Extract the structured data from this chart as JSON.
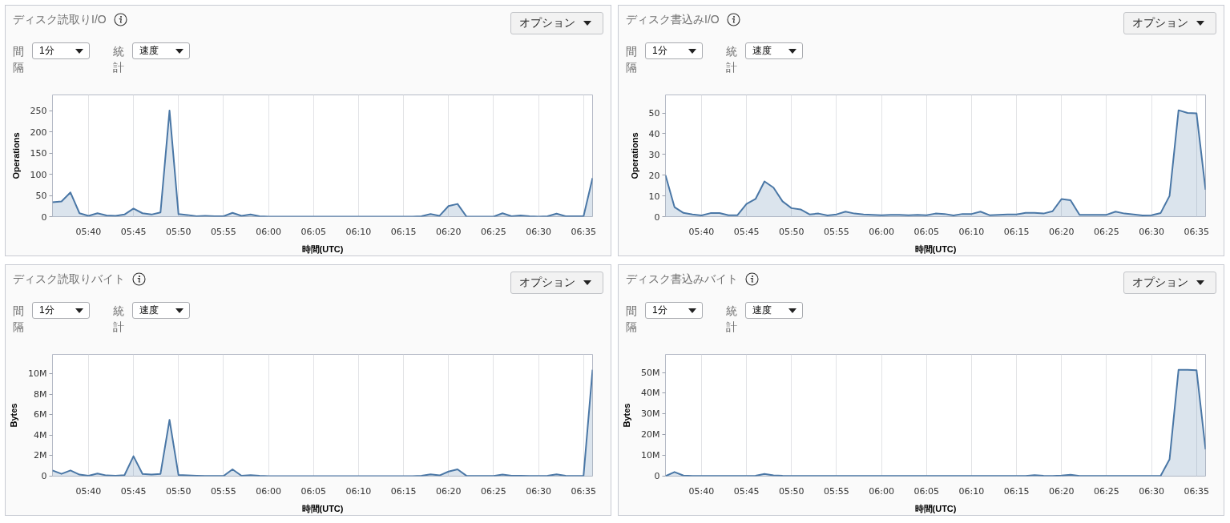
{
  "chart_data": [
    {
      "type": "area",
      "title": "ディスク読取りI/O",
      "annotations": [
        "オプション",
        "間隔",
        "1分",
        "統計",
        "速度"
      ],
      "xlabel": "時間(UTC)",
      "ylabel": "Operations",
      "color": "#4a77a6",
      "grid": "x",
      "x": [
        5.6,
        5.6167,
        5.6333,
        5.65,
        5.6667,
        5.6833,
        5.7,
        5.7167,
        5.7333,
        5.75,
        5.7667,
        5.7833,
        5.8,
        5.8167,
        5.8333,
        5.85,
        5.8667,
        5.8833,
        5.9,
        5.9167,
        5.9333,
        5.95,
        5.9667,
        5.9833,
        6.0,
        6.0167,
        6.0333,
        6.05,
        6.0667,
        6.0833,
        6.1,
        6.1167,
        6.1333,
        6.15,
        6.1667,
        6.1833,
        6.2,
        6.2167,
        6.2333,
        6.25,
        6.2667,
        6.2833,
        6.3,
        6.3167,
        6.3333,
        6.35,
        6.3667,
        6.3833,
        6.4,
        6.4167,
        6.4333,
        6.45,
        6.4667,
        6.4833,
        6.5,
        6.5167,
        6.5333,
        6.55,
        6.5667,
        6.5833,
        6.6
      ],
      "values": [
        34,
        36,
        57,
        8,
        2,
        8,
        3,
        2,
        5,
        19,
        8,
        5,
        10,
        250,
        6,
        4,
        1,
        2,
        1,
        1,
        9,
        2,
        5,
        1,
        0,
        0,
        0,
        0,
        0,
        0,
        0,
        0,
        0,
        0,
        0,
        0,
        0,
        0,
        0,
        0,
        0,
        1,
        6,
        2,
        25,
        30,
        0,
        0,
        0,
        0,
        8,
        1,
        3,
        1,
        0,
        1,
        7,
        1,
        1,
        1,
        91
      ],
      "xlim": [
        5.6,
        6.6
      ],
      "ylim": [
        0,
        287
      ],
      "xticks": [
        {
          "value": 5.6667,
          "label": "05:40"
        },
        {
          "value": 5.75,
          "label": "05:45"
        },
        {
          "value": 5.8333,
          "label": "05:50"
        },
        {
          "value": 5.9167,
          "label": "05:55"
        },
        {
          "value": 6.0,
          "label": "06:00"
        },
        {
          "value": 6.0833,
          "label": "06:05"
        },
        {
          "value": 6.1667,
          "label": "06:10"
        },
        {
          "value": 6.25,
          "label": "06:15"
        },
        {
          "value": 6.3333,
          "label": "06:20"
        },
        {
          "value": 6.4167,
          "label": "06:25"
        },
        {
          "value": 6.5,
          "label": "06:30"
        },
        {
          "value": 6.5833,
          "label": "06:35"
        }
      ],
      "yticks": [
        0,
        50,
        100,
        150,
        200,
        250
      ]
    },
    {
      "type": "area",
      "title": "ディスク書込みI/O",
      "annotations": [
        "オプション",
        "間隔",
        "1分",
        "統計",
        "速度"
      ],
      "xlabel": "時間(UTC)",
      "ylabel": "Operations",
      "color": "#4a77a6",
      "grid": "x",
      "x": [
        5.6,
        5.6167,
        5.6333,
        5.65,
        5.6667,
        5.6833,
        5.7,
        5.7167,
        5.7333,
        5.75,
        5.7667,
        5.7833,
        5.8,
        5.8167,
        5.8333,
        5.85,
        5.8667,
        5.8833,
        5.9,
        5.9167,
        5.9333,
        5.95,
        5.9667,
        5.9833,
        6.0,
        6.0167,
        6.0333,
        6.05,
        6.0667,
        6.0833,
        6.1,
        6.1167,
        6.1333,
        6.15,
        6.1667,
        6.1833,
        6.2,
        6.2167,
        6.2333,
        6.25,
        6.2667,
        6.2833,
        6.3,
        6.3167,
        6.3333,
        6.35,
        6.3667,
        6.3833,
        6.4,
        6.4167,
        6.4333,
        6.45,
        6.4667,
        6.4833,
        6.5,
        6.5167,
        6.5333,
        6.55,
        6.5667,
        6.5833,
        6.6
      ],
      "values": [
        20,
        4.6,
        1.8,
        1.1,
        0.6,
        1.7,
        1.7,
        0.7,
        0.7,
        6.1,
        8.5,
        17,
        14,
        7.4,
        4.1,
        3.5,
        1.1,
        1.5,
        0.6,
        1.1,
        2.4,
        1.5,
        1.1,
        0.9,
        0.7,
        0.9,
        0.9,
        0.7,
        0.9,
        0.7,
        1.5,
        1.3,
        0.6,
        1.3,
        1.3,
        2.4,
        0.7,
        0.9,
        1.1,
        1.1,
        1.8,
        1.8,
        1.5,
        2.6,
        8.5,
        7.9,
        0.9,
        0.9,
        0.9,
        0.9,
        2.4,
        1.5,
        1.1,
        0.6,
        0.7,
        1.7,
        10,
        51.3,
        50,
        49.8,
        13
      ],
      "xlim": [
        5.6,
        6.6
      ],
      "ylim": [
        0,
        58.7
      ],
      "xticks": [
        {
          "value": 5.6667,
          "label": "05:40"
        },
        {
          "value": 5.75,
          "label": "05:45"
        },
        {
          "value": 5.8333,
          "label": "05:50"
        },
        {
          "value": 5.9167,
          "label": "05:55"
        },
        {
          "value": 6.0,
          "label": "06:00"
        },
        {
          "value": 6.0833,
          "label": "06:05"
        },
        {
          "value": 6.1667,
          "label": "06:10"
        },
        {
          "value": 6.25,
          "label": "06:15"
        },
        {
          "value": 6.3333,
          "label": "06:20"
        },
        {
          "value": 6.4167,
          "label": "06:25"
        },
        {
          "value": 6.5,
          "label": "06:30"
        },
        {
          "value": 6.5833,
          "label": "06:35"
        }
      ],
      "yticks": [
        0,
        10,
        20,
        30,
        40,
        50
      ]
    },
    {
      "type": "area",
      "title": "ディスク読取りバイト",
      "annotations": [
        "オプション",
        "間隔",
        "1分",
        "統計",
        "速度"
      ],
      "xlabel": "時間(UTC)",
      "ylabel": "Bytes",
      "color": "#4a77a6",
      "grid": "x",
      "x": [
        5.6,
        5.6167,
        5.6333,
        5.65,
        5.6667,
        5.6833,
        5.7,
        5.7167,
        5.7333,
        5.75,
        5.7667,
        5.7833,
        5.8,
        5.8167,
        5.8333,
        5.85,
        5.8667,
        5.8833,
        5.9,
        5.9167,
        5.9333,
        5.95,
        5.9667,
        5.9833,
        6.0,
        6.0167,
        6.0333,
        6.05,
        6.0667,
        6.0833,
        6.1,
        6.1167,
        6.1333,
        6.15,
        6.1667,
        6.1833,
        6.2,
        6.2167,
        6.2333,
        6.25,
        6.2667,
        6.2833,
        6.3,
        6.3167,
        6.3333,
        6.35,
        6.3667,
        6.3833,
        6.4,
        6.4167,
        6.4333,
        6.45,
        6.4667,
        6.4833,
        6.5,
        6.5167,
        6.5333,
        6.55,
        6.5667,
        6.5833,
        6.6
      ],
      "values": [
        560000,
        220000,
        560000,
        150000,
        40000,
        260000,
        70000,
        40000,
        100000,
        1950000,
        220000,
        150000,
        220000,
        5500000,
        110000,
        70000,
        40000,
        20000,
        20000,
        20000,
        670000,
        40000,
        100000,
        30000,
        0,
        0,
        0,
        0,
        0,
        0,
        0,
        0,
        0,
        0,
        0,
        0,
        0,
        0,
        0,
        0,
        0,
        40000,
        180000,
        70000,
        450000,
        670000,
        30000,
        20000,
        20000,
        20000,
        150000,
        40000,
        40000,
        20000,
        20000,
        40000,
        180000,
        40000,
        20000,
        40000,
        10400000
      ],
      "xlim": [
        5.6,
        6.6
      ],
      "ylim": [
        0,
        11900000
      ],
      "xticks": [
        {
          "value": 5.6667,
          "label": "05:40"
        },
        {
          "value": 5.75,
          "label": "05:45"
        },
        {
          "value": 5.8333,
          "label": "05:50"
        },
        {
          "value": 5.9167,
          "label": "05:55"
        },
        {
          "value": 6.0,
          "label": "06:00"
        },
        {
          "value": 6.0833,
          "label": "06:05"
        },
        {
          "value": 6.1667,
          "label": "06:10"
        },
        {
          "value": 6.25,
          "label": "06:15"
        },
        {
          "value": 6.3333,
          "label": "06:20"
        },
        {
          "value": 6.4167,
          "label": "06:25"
        },
        {
          "value": 6.5,
          "label": "06:30"
        },
        {
          "value": 6.5833,
          "label": "06:35"
        }
      ],
      "yticks": [
        0,
        {
          "value": 2000000,
          "label": "2M"
        },
        {
          "value": 4000000,
          "label": "4M"
        },
        {
          "value": 6000000,
          "label": "6M"
        },
        {
          "value": 8000000,
          "label": "8M"
        },
        {
          "value": 10000000,
          "label": "10M"
        }
      ]
    },
    {
      "type": "area",
      "title": "ディスク書込みバイト",
      "annotations": [
        "オプション",
        "間隔",
        "1分",
        "統計",
        "速度"
      ],
      "xlabel": "時間(UTC)",
      "ylabel": "Bytes",
      "color": "#4a77a6",
      "grid": "x",
      "x": [
        5.6,
        5.6167,
        5.6333,
        5.65,
        5.6667,
        5.6833,
        5.7,
        5.7167,
        5.7333,
        5.75,
        5.7667,
        5.7833,
        5.8,
        5.8167,
        5.8333,
        5.85,
        5.8667,
        5.8833,
        5.9,
        5.9167,
        5.9333,
        5.95,
        5.9667,
        5.9833,
        6.0,
        6.0167,
        6.0333,
        6.05,
        6.0667,
        6.0833,
        6.1,
        6.1167,
        6.1333,
        6.15,
        6.1667,
        6.1833,
        6.2,
        6.2167,
        6.2333,
        6.25,
        6.2667,
        6.2833,
        6.3,
        6.3167,
        6.3333,
        6.35,
        6.3667,
        6.3833,
        6.4,
        6.4167,
        6.4333,
        6.45,
        6.4667,
        6.4833,
        6.5,
        6.5167,
        6.5333,
        6.55,
        6.5667,
        6.5833,
        6.6
      ],
      "values": [
        0,
        2000000,
        300000,
        100000,
        100000,
        100000,
        100000,
        100000,
        100000,
        100000,
        200000,
        1100000,
        400000,
        200000,
        100000,
        100000,
        100000,
        100000,
        100000,
        100000,
        100000,
        100000,
        100000,
        100000,
        100000,
        100000,
        100000,
        100000,
        100000,
        100000,
        100000,
        100000,
        100000,
        100000,
        100000,
        100000,
        100000,
        100000,
        100000,
        100000,
        100000,
        500000,
        200000,
        100000,
        300000,
        700000,
        100000,
        100000,
        100000,
        100000,
        100000,
        100000,
        100000,
        100000,
        100000,
        100000,
        8100000,
        51300000,
        51300000,
        51100000,
        12900000
      ],
      "xlim": [
        5.6,
        6.6
      ],
      "ylim": [
        0,
        58700000
      ],
      "xticks": [
        {
          "value": 5.6667,
          "label": "05:40"
        },
        {
          "value": 5.75,
          "label": "05:45"
        },
        {
          "value": 5.8333,
          "label": "05:50"
        },
        {
          "value": 5.9167,
          "label": "05:55"
        },
        {
          "value": 6.0,
          "label": "06:00"
        },
        {
          "value": 6.0833,
          "label": "06:05"
        },
        {
          "value": 6.1667,
          "label": "06:10"
        },
        {
          "value": 6.25,
          "label": "06:15"
        },
        {
          "value": 6.3333,
          "label": "06:20"
        },
        {
          "value": 6.4167,
          "label": "06:25"
        },
        {
          "value": 6.5,
          "label": "06:30"
        },
        {
          "value": 6.5833,
          "label": "06:35"
        }
      ],
      "yticks": [
        0,
        {
          "value": 10000000,
          "label": "10M"
        },
        {
          "value": 20000000,
          "label": "20M"
        },
        {
          "value": 30000000,
          "label": "30M"
        },
        {
          "value": 40000000,
          "label": "40M"
        },
        {
          "value": 50000000,
          "label": "50M"
        }
      ]
    }
  ]
}
